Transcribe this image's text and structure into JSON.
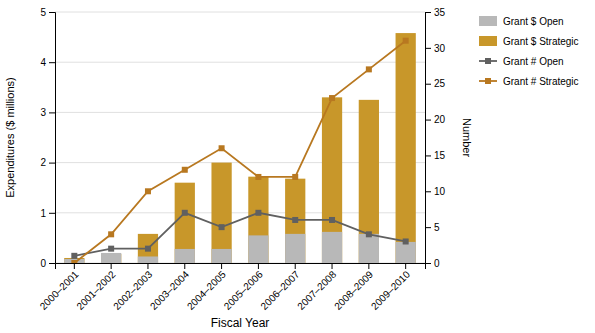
{
  "chart_data": {
    "type": "bar",
    "categories": [
      "2000–2001",
      "2001–2002",
      "2002–2003",
      "2003–2004",
      "2004–2005",
      "2005–2006",
      "2006–2007",
      "2007–2008",
      "2008–2009",
      "2009–2010"
    ],
    "xlabel": "Fiscal Year",
    "ylabel": "Expenditures ($ millions)",
    "y2label": "Number",
    "ylim": [
      0,
      5
    ],
    "yticks": [
      0,
      1,
      2,
      3,
      4,
      5
    ],
    "y2lim": [
      0,
      35
    ],
    "y2ticks": [
      0,
      5,
      10,
      15,
      20,
      25,
      30,
      35
    ],
    "grid": true,
    "legend": "right",
    "series": [
      {
        "name": "Grant $ Open",
        "type": "bar",
        "color": "#b8b8b8",
        "values": [
          0.08,
          0.2,
          0.13,
          0.28,
          0.28,
          0.55,
          0.58,
          0.62,
          0.58,
          0.42
        ]
      },
      {
        "name": "Grant $ Strategic",
        "type": "bar",
        "color": "#c8972a",
        "values": [
          0.1,
          0.18,
          0.58,
          1.6,
          2.0,
          1.72,
          1.68,
          3.3,
          3.25,
          4.58
        ]
      },
      {
        "name": "Grant # Open",
        "type": "line",
        "axis": "y2",
        "marker": "square",
        "color": "#606060",
        "values": [
          1,
          2,
          2,
          7,
          5,
          7,
          6,
          6,
          4,
          3
        ]
      },
      {
        "name": "Grant # Strategic",
        "type": "line",
        "axis": "y2",
        "marker": "square",
        "color": "#b87820",
        "values": [
          0,
          4,
          10,
          13,
          16,
          12,
          12,
          23,
          27,
          31
        ]
      }
    ]
  }
}
